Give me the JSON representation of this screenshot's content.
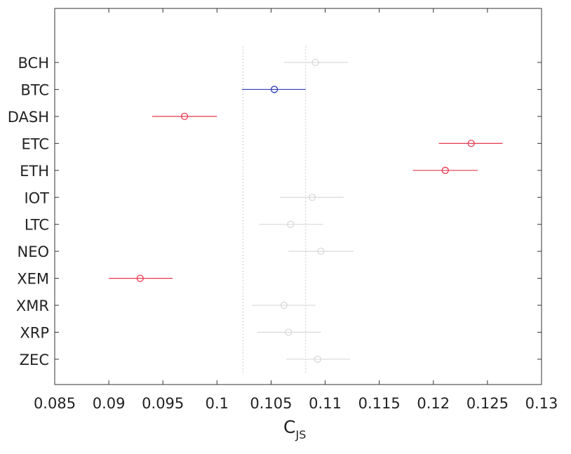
{
  "chart_data": {
    "type": "interval",
    "xlabel_main": "C",
    "xlabel_sub": "JS",
    "xlim": [
      0.085,
      0.13
    ],
    "xticks": [
      "0.085",
      "0.09",
      "0.095",
      "0.1",
      "0.105",
      "0.11",
      "0.115",
      "0.12",
      "0.125",
      "0.13"
    ],
    "grid": false,
    "reference_lines": [
      0.1024,
      0.1082
    ],
    "colors": {
      "grey": "#d9d9d9",
      "blue": "#2d3fb3",
      "red": "#e8384f",
      "ref": "#bdbdbd"
    },
    "items": [
      {
        "label": "BCH",
        "center": 0.1091,
        "low": 0.1062,
        "high": 0.1121,
        "color": "grey"
      },
      {
        "label": "BTC",
        "center": 0.1053,
        "low": 0.1023,
        "high": 0.1082,
        "color": "blue"
      },
      {
        "label": "DASH",
        "center": 0.097,
        "low": 0.094,
        "high": 0.1,
        "color": "red"
      },
      {
        "label": "ETC",
        "center": 0.1235,
        "low": 0.1205,
        "high": 0.1264,
        "color": "red"
      },
      {
        "label": "ETH",
        "center": 0.1211,
        "low": 0.1181,
        "high": 0.1241,
        "color": "red"
      },
      {
        "label": "IOT",
        "center": 0.1088,
        "low": 0.1058,
        "high": 0.1117,
        "color": "grey"
      },
      {
        "label": "LTC",
        "center": 0.1068,
        "low": 0.1039,
        "high": 0.1098,
        "color": "grey"
      },
      {
        "label": "NEO",
        "center": 0.1096,
        "low": 0.1066,
        "high": 0.1126,
        "color": "grey"
      },
      {
        "label": "XEM",
        "center": 0.0929,
        "low": 0.09,
        "high": 0.0959,
        "color": "red"
      },
      {
        "label": "XMR",
        "center": 0.1062,
        "low": 0.1032,
        "high": 0.1091,
        "color": "grey"
      },
      {
        "label": "XRP",
        "center": 0.1066,
        "low": 0.1037,
        "high": 0.1096,
        "color": "grey"
      },
      {
        "label": "ZEC",
        "center": 0.1093,
        "low": 0.1064,
        "high": 0.1123,
        "color": "grey"
      }
    ]
  }
}
